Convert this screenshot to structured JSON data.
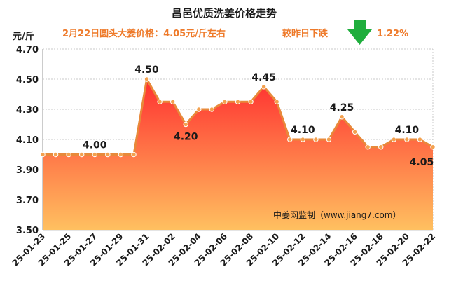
{
  "chart_data": {
    "type": "area",
    "title": "昌邑优质洗姜价格走势",
    "subtitle": "2月22日圆头大姜价格：4.05元/斤左右",
    "change_text": "较昨日下跌",
    "change_percent": "1.22%",
    "change_direction": "down",
    "unit_label": "元/斤",
    "source": "中姜网监制（www.jiang7.com）",
    "x": [
      "25-01-23",
      "25-01-24",
      "25-01-25",
      "25-01-26",
      "25-01-27",
      "25-01-28",
      "25-01-29",
      "25-01-30",
      "25-01-31",
      "25-02-01",
      "25-02-02",
      "25-02-03",
      "25-02-04",
      "25-02-05",
      "25-02-06",
      "25-02-07",
      "25-02-08",
      "25-02-09",
      "25-02-10",
      "25-02-11",
      "25-02-12",
      "25-02-13",
      "25-02-14",
      "25-02-15",
      "25-02-16",
      "25-02-17",
      "25-02-18",
      "25-02-19",
      "25-02-20",
      "25-02-21",
      "25-02-22"
    ],
    "x_tick_labels": [
      "25-01-23",
      "25-01-25",
      "25-01-27",
      "25-01-29",
      "25-01-31",
      "25-02-02",
      "25-02-04",
      "25-02-06",
      "25-02-08",
      "25-02-10",
      "25-02-12",
      "25-02-14",
      "25-02-16",
      "25-02-18",
      "25-02-20",
      "25-02-22"
    ],
    "values": [
      4.0,
      4.0,
      4.0,
      4.0,
      4.0,
      4.0,
      4.0,
      4.0,
      4.5,
      4.35,
      4.35,
      4.2,
      4.3,
      4.3,
      4.35,
      4.35,
      4.35,
      4.45,
      4.35,
      4.1,
      4.1,
      4.1,
      4.1,
      4.25,
      4.15,
      4.05,
      4.05,
      4.1,
      4.1,
      4.1,
      4.05
    ],
    "data_labels": [
      {
        "index": 4,
        "text": "4.00",
        "pos": "above"
      },
      {
        "index": 8,
        "text": "4.50",
        "pos": "above"
      },
      {
        "index": 11,
        "text": "4.20",
        "pos": "below"
      },
      {
        "index": 17,
        "text": "4.45",
        "pos": "above"
      },
      {
        "index": 20,
        "text": "4.10",
        "pos": "above"
      },
      {
        "index": 23,
        "text": "4.25",
        "pos": "above"
      },
      {
        "index": 28,
        "text": "4.10",
        "pos": "above"
      },
      {
        "index": 30,
        "text": "4.05",
        "pos": "below-left"
      }
    ],
    "y_ticks": [
      "3.50",
      "3.70",
      "3.90",
      "4.10",
      "4.30",
      "4.50",
      "4.70"
    ],
    "ylim": [
      3.5,
      4.7
    ],
    "grid": true,
    "colors": {
      "line": "#e8893a",
      "marker": "#f3a14f",
      "area_top": "#ff3030",
      "area_bottom": "#ffc060",
      "grid": "#c8c8c8",
      "arrow": "#1fae3d",
      "subtitle": "#ee7a2a"
    }
  }
}
